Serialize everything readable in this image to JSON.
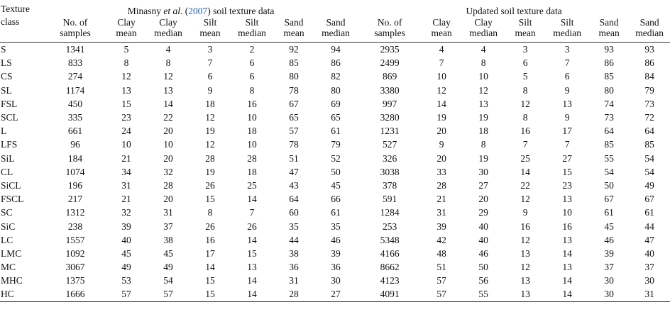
{
  "header": {
    "texture_class": [
      "Texture",
      "class"
    ],
    "group1_title_pre": "Minasny ",
    "group1_title_em": "et al",
    "group1_title_mid": ". (",
    "group1_title_cite": "2007",
    "group1_title_post": ") soil texture data",
    "group2_title": "Updated soil texture data",
    "columns": [
      [
        "No. of",
        "samples"
      ],
      [
        "Clay",
        "mean"
      ],
      [
        "Clay",
        "median"
      ],
      [
        "Silt",
        "mean"
      ],
      [
        "Silt",
        "median"
      ],
      [
        "Sand",
        "mean"
      ],
      [
        "Sand",
        "median"
      ],
      [
        "No. of",
        "samples"
      ],
      [
        "Clay",
        "mean"
      ],
      [
        "Clay",
        "median"
      ],
      [
        "Silt",
        "mean"
      ],
      [
        "Silt",
        "median"
      ],
      [
        "Sand",
        "mean"
      ],
      [
        "Sand",
        "median"
      ]
    ]
  },
  "rows": [
    [
      "S",
      "1341",
      "5",
      "4",
      "3",
      "2",
      "92",
      "94",
      "2935",
      "4",
      "4",
      "3",
      "3",
      "93",
      "93"
    ],
    [
      "LS",
      "833",
      "8",
      "8",
      "7",
      "6",
      "85",
      "86",
      "2499",
      "7",
      "8",
      "6",
      "7",
      "86",
      "86"
    ],
    [
      "CS",
      "274",
      "12",
      "12",
      "6",
      "6",
      "80",
      "82",
      "869",
      "10",
      "10",
      "5",
      "6",
      "85",
      "84"
    ],
    [
      "SL",
      "1174",
      "13",
      "13",
      "9",
      "8",
      "78",
      "80",
      "3380",
      "12",
      "12",
      "8",
      "9",
      "80",
      "79"
    ],
    [
      "FSL",
      "450",
      "15",
      "14",
      "18",
      "16",
      "67",
      "69",
      "997",
      "14",
      "13",
      "12",
      "13",
      "74",
      "73"
    ],
    [
      "SCL",
      "335",
      "23",
      "22",
      "12",
      "10",
      "65",
      "65",
      "3280",
      "19",
      "19",
      "8",
      "9",
      "73",
      "72"
    ],
    [
      "L",
      "661",
      "24",
      "20",
      "19",
      "18",
      "57",
      "61",
      "1231",
      "20",
      "18",
      "16",
      "17",
      "64",
      "64"
    ],
    [
      "LFS",
      "96",
      "10",
      "10",
      "12",
      "10",
      "78",
      "79",
      "527",
      "9",
      "8",
      "7",
      "7",
      "85",
      "85"
    ],
    [
      "SiL",
      "184",
      "21",
      "20",
      "28",
      "28",
      "51",
      "52",
      "326",
      "20",
      "19",
      "25",
      "27",
      "55",
      "54"
    ],
    [
      "CL",
      "1074",
      "34",
      "32",
      "19",
      "18",
      "47",
      "50",
      "3038",
      "33",
      "30",
      "14",
      "15",
      "54",
      "54"
    ],
    [
      "SiCL",
      "196",
      "31",
      "28",
      "26",
      "25",
      "43",
      "45",
      "378",
      "28",
      "27",
      "22",
      "23",
      "50",
      "49"
    ],
    [
      "FSCL",
      "217",
      "21",
      "20",
      "15",
      "14",
      "64",
      "66",
      "591",
      "21",
      "20",
      "12",
      "13",
      "67",
      "67"
    ],
    [
      "SC",
      "1312",
      "32",
      "31",
      "8",
      "7",
      "60",
      "61",
      "1284",
      "31",
      "29",
      "9",
      "10",
      "61",
      "61"
    ],
    [
      "SiC",
      "238",
      "39",
      "37",
      "26",
      "26",
      "35",
      "35",
      "253",
      "39",
      "40",
      "16",
      "16",
      "45",
      "44"
    ],
    [
      "LC",
      "1557",
      "40",
      "38",
      "16",
      "14",
      "44",
      "46",
      "5348",
      "42",
      "40",
      "12",
      "13",
      "46",
      "47"
    ],
    [
      "LMC",
      "1092",
      "45",
      "45",
      "17",
      "15",
      "38",
      "39",
      "4166",
      "48",
      "46",
      "13",
      "14",
      "39",
      "40"
    ],
    [
      "MC",
      "3067",
      "49",
      "49",
      "14",
      "13",
      "36",
      "36",
      "8662",
      "51",
      "50",
      "12",
      "13",
      "37",
      "37"
    ],
    [
      "MHC",
      "1375",
      "53",
      "54",
      "15",
      "14",
      "31",
      "30",
      "4123",
      "57",
      "56",
      "13",
      "14",
      "30",
      "30"
    ],
    [
      "HC",
      "1666",
      "57",
      "57",
      "15",
      "14",
      "28",
      "27",
      "4091",
      "57",
      "55",
      "13",
      "14",
      "30",
      "31"
    ]
  ]
}
